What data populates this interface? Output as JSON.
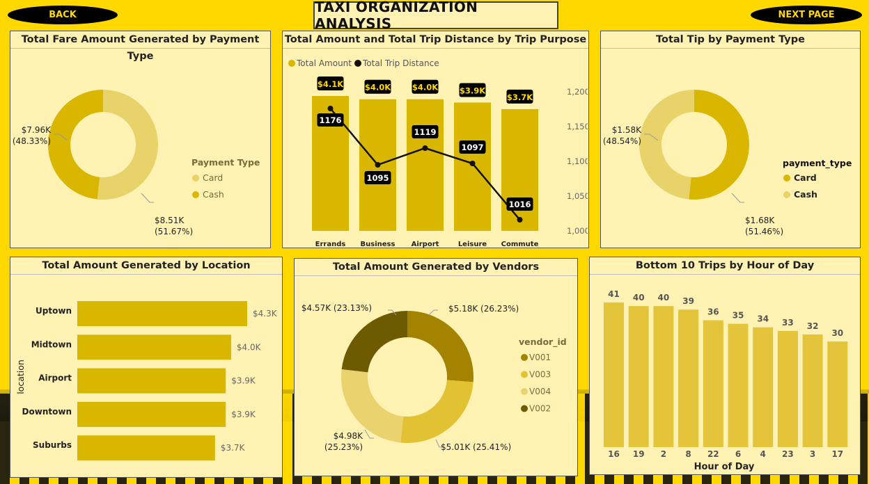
{
  "header": {
    "back_label": "BACK",
    "next_label": "NEXT PAGE",
    "title": "TAXI ORGANIZATION ANALYSIS"
  },
  "colors": {
    "card_light": "#e8d36a",
    "cash_dark": "#d9b600",
    "bar": "#d9b600",
    "v001": "#a38300",
    "v003": "#e2c233",
    "v004": "#ead36f",
    "v002": "#6e5a00",
    "hour_bar": "#e3c43a"
  },
  "chart_data": [
    {
      "id": "fare",
      "type": "pie",
      "title": "Total Fare Amount Generated by Payment Type",
      "legend_title": "Payment Type",
      "series": [
        {
          "name": "Card",
          "value": 8.51,
          "label": "$8.51K",
          "pct": "(51.67%)"
        },
        {
          "name": "Cash",
          "value": 7.96,
          "label": "$7.96K",
          "pct": "(48.33%)"
        }
      ]
    },
    {
      "id": "purpose",
      "type": "bar",
      "title": "Total Amount and Total Trip Distance by Trip Purpose",
      "legend": [
        "Total Amount",
        "Total Trip Distance"
      ],
      "categories": [
        "Errands",
        "Business",
        "Airport Transfer",
        "Leisure",
        "Commute"
      ],
      "amount_labels": [
        "$4.1K",
        "$4.0K",
        "$4.0K",
        "$3.9K",
        "$3.7K"
      ],
      "amount_values": [
        4.1,
        4.0,
        4.0,
        3.9,
        3.7
      ],
      "distance": [
        1176,
        1095,
        1119,
        1097,
        1016
      ],
      "y2_ticks": [
        "1,200",
        "1,150",
        "1,100",
        "1,050",
        "1,000"
      ],
      "y2_range": [
        1000,
        1200
      ]
    },
    {
      "id": "tip",
      "type": "pie",
      "title": "Total Tip by Payment Type",
      "legend_title": "payment_type",
      "series": [
        {
          "name": "Card",
          "value": 1.68,
          "label": "$1.68K",
          "pct": "(51.46%)"
        },
        {
          "name": "Cash",
          "value": 1.58,
          "label": "$1.58K",
          "pct": "(48.54%)"
        }
      ]
    },
    {
      "id": "location",
      "type": "bar",
      "title": "Total Amount Generated by Location",
      "ylabel": "location",
      "categories": [
        "Uptown",
        "Midtown",
        "Airport",
        "Downtown",
        "Suburbs"
      ],
      "values": [
        4.3,
        4.0,
        3.9,
        3.9,
        3.7
      ],
      "labels": [
        "$4.3K",
        "$4.0K",
        "$3.9K",
        "$3.9K",
        "$3.7K"
      ]
    },
    {
      "id": "vendors",
      "type": "pie",
      "title": "Total Amount Generated by Vendors",
      "legend_title": "vendor_id",
      "series": [
        {
          "name": "V001",
          "value": 5.18,
          "label": "$5.18K (26.23%)"
        },
        {
          "name": "V003",
          "value": 5.01,
          "label": "$5.01K (25.41%)"
        },
        {
          "name": "V004",
          "value": 4.98,
          "label": "$4.98K",
          "pct": "(25.23%)"
        },
        {
          "name": "V002",
          "value": 4.57,
          "label": "$4.57K (23.13%)"
        }
      ]
    },
    {
      "id": "hours",
      "type": "bar",
      "title": "Bottom 10 Trips by Hour of Day",
      "xlabel": "Hour of Day",
      "categories": [
        "16",
        "19",
        "2",
        "8",
        "22",
        "6",
        "4",
        "23",
        "3",
        "17"
      ],
      "values": [
        41,
        40,
        40,
        39,
        36,
        35,
        34,
        33,
        32,
        30
      ]
    }
  ]
}
